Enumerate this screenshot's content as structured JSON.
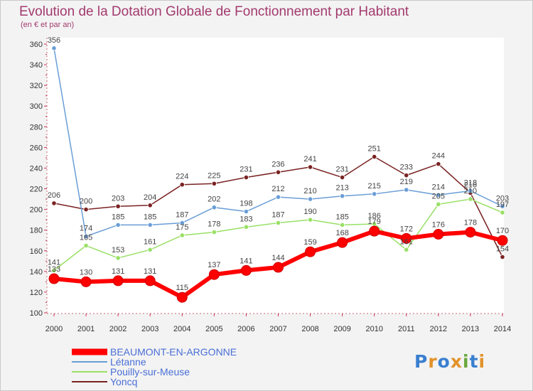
{
  "chart_data": {
    "type": "line",
    "title": "Evolution de la Dotation Globale de Fonctionnement par Habitant",
    "subtitle": "(en € et par an)",
    "x": [
      "2000",
      "2001",
      "2002",
      "2003",
      "2004",
      "2005",
      "2006",
      "2007",
      "2008",
      "2009",
      "2010",
      "2011",
      "2012",
      "2013",
      "2014"
    ],
    "ylim": [
      100,
      360
    ],
    "yticks": [
      100,
      120,
      140,
      160,
      180,
      200,
      220,
      240,
      260,
      280,
      300,
      320,
      340,
      360
    ],
    "grid": false,
    "legend_position": "bottom-left",
    "series": [
      {
        "name": "BEAUMONT-EN-ARGONNE",
        "color": "#ff0000",
        "values": [
          133,
          130,
          131,
          131,
          115,
          137,
          141,
          144,
          159,
          168,
          179,
          172,
          176,
          178,
          170
        ]
      },
      {
        "name": "Létanne",
        "color": "#6a9ed6",
        "values": [
          356,
          174,
          185,
          185,
          187,
          202,
          198,
          212,
          210,
          213,
          215,
          219,
          214,
          218,
          203
        ]
      },
      {
        "name": "Pouilly-sur-Meuse",
        "color": "#99e066",
        "values": [
          141,
          165,
          153,
          161,
          175,
          178,
          183,
          187,
          190,
          185,
          186,
          161,
          205,
          210,
          197
        ]
      },
      {
        "name": "Yoncq",
        "color": "#7a2222",
        "values": [
          206,
          200,
          203,
          204,
          224,
          225,
          231,
          236,
          241,
          231,
          251,
          233,
          244,
          216,
          154
        ]
      }
    ]
  },
  "logo": {
    "text": "Proxiti"
  }
}
